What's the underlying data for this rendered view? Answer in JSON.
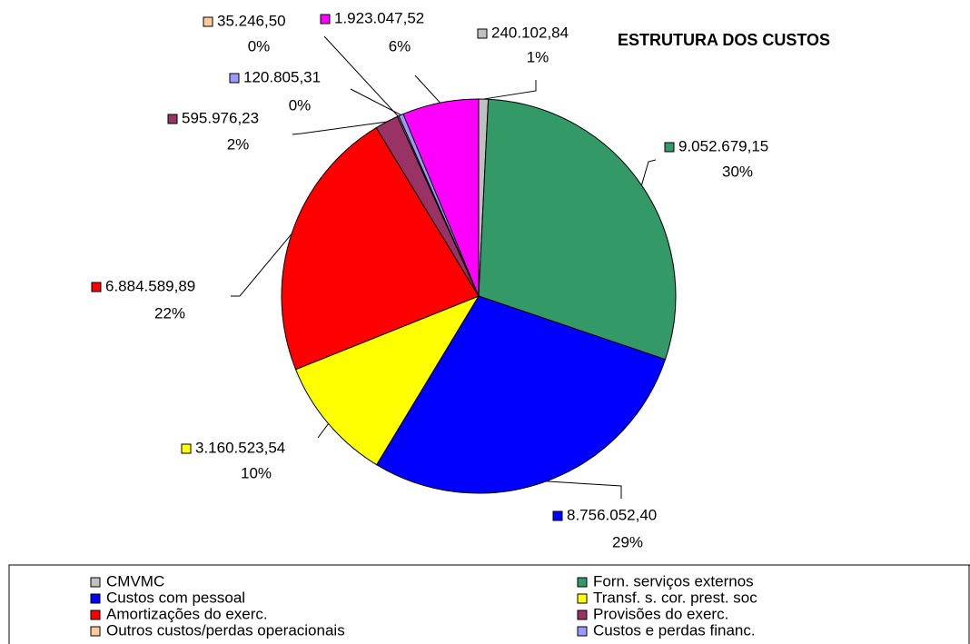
{
  "chart_data": {
    "type": "pie",
    "title": "ESTRUTURA DOS CUSTOS",
    "categories": [
      "CMVMC",
      "Forn. serviços externos",
      "Custos com pessoal",
      "Transf. s. cor. prest. soc",
      "Amortizações do exerc.",
      "Provisões do exerc.",
      "Outros custos/perdas operacionais",
      "Custos e perdas financ.",
      null
    ],
    "values": [
      240102.84,
      9052679.15,
      8756052.4,
      3160523.54,
      6884589.89,
      595976.23,
      35246.5,
      120805.31,
      1923047.52
    ],
    "value_labels": [
      "240.102,84",
      "9.052.679,15",
      "8.756.052,40",
      "3.160.523,54",
      "6.884.589,89",
      "595.976,23",
      "35.246,50",
      "120.805,31",
      "1.923.047,52"
    ],
    "percents": [
      1,
      30,
      29,
      10,
      22,
      2,
      0,
      0,
      6
    ],
    "percent_labels": [
      "1%",
      "30%",
      "29%",
      "10%",
      "22%",
      "2%",
      "0%",
      "0%",
      "6%"
    ],
    "colors": [
      "#c0c0c0",
      "#339966",
      "#0000ff",
      "#ffff00",
      "#ff0000",
      "#993366",
      "#ffcc99",
      "#9999ff",
      "#ff00ff"
    ]
  }
}
